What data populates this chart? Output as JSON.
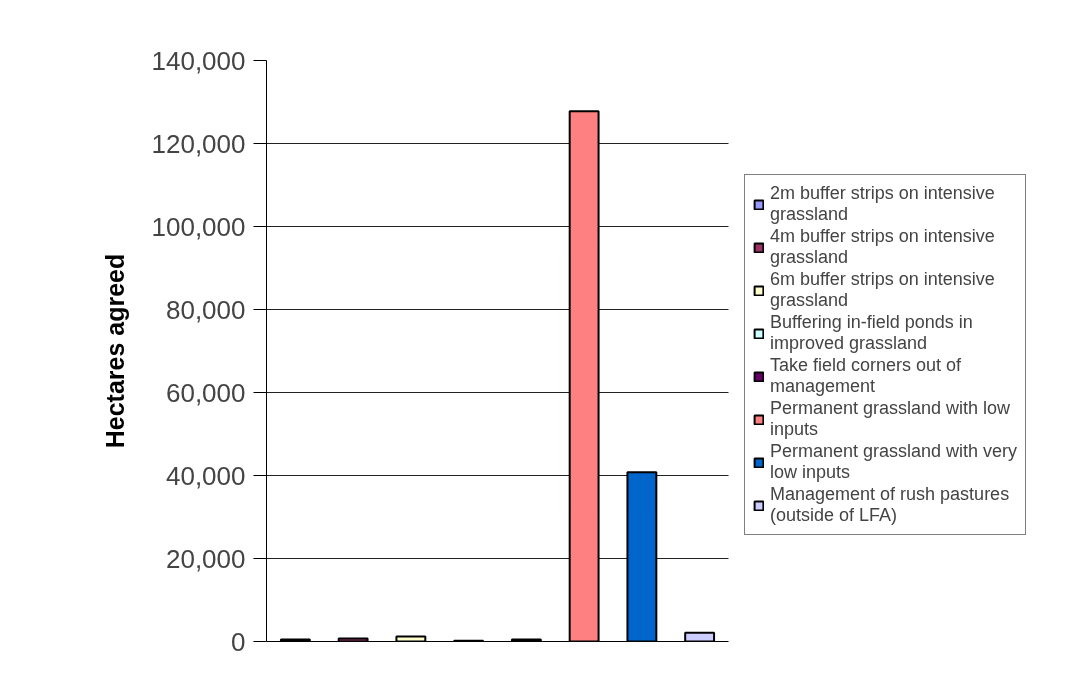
{
  "chart_data": {
    "type": "bar",
    "ylabel": "Hectares agreed",
    "stacked": true,
    "categories": [
      null,
      null,
      null,
      null,
      null,
      null,
      null,
      null
    ],
    "series": [
      {
        "name": "2m buffer strips on intensive grassland",
        "color": "#9999ff",
        "values": [
          500,
          null,
          null,
          null,
          null,
          null,
          null,
          null
        ]
      },
      {
        "name": "4m buffer strips on intensive grassland",
        "color": "#993366",
        "values": [
          null,
          700,
          null,
          null,
          null,
          null,
          null,
          null
        ]
      },
      {
        "name": "6m buffer strips on intensive grassland",
        "color": "#ffffcc",
        "values": [
          null,
          null,
          1200,
          null,
          null,
          null,
          null,
          null
        ]
      },
      {
        "name": "Buffering in-field ponds in improved grassland",
        "color": "#ccffff",
        "values": [
          null,
          null,
          null,
          200,
          null,
          null,
          null,
          null
        ]
      },
      {
        "name": "Take field corners out of management",
        "color": "#660066",
        "values": [
          null,
          null,
          null,
          null,
          500,
          null,
          null,
          null
        ]
      },
      {
        "name": "Permanent grassland with low inputs",
        "color": "#ff8080",
        "values": [
          null,
          null,
          null,
          null,
          null,
          127800,
          null,
          null
        ]
      },
      {
        "name": "Permanent grassland with very low inputs",
        "color": "#0066cc",
        "values": [
          null,
          null,
          null,
          null,
          null,
          null,
          40800,
          null
        ]
      },
      {
        "name": "Management of rush pastures (outside of LFA)",
        "color": "#ccccff",
        "values": [
          null,
          null,
          null,
          null,
          null,
          null,
          null,
          2100
        ]
      }
    ],
    "ylim": [
      0,
      140000
    ],
    "yticks": [
      0,
      {
        "value": 20000,
        "label": "20,000"
      },
      {
        "value": 40000,
        "label": "40,000"
      },
      {
        "value": 60000,
        "label": "60,000"
      },
      {
        "value": 80000,
        "label": "80,000"
      },
      {
        "value": 100000,
        "label": "100,000"
      },
      {
        "value": 120000,
        "label": "120,000"
      },
      {
        "value": 140000,
        "label": "140,000"
      }
    ],
    "grid": "y",
    "legend": "right",
    "tick_labels": "y"
  }
}
